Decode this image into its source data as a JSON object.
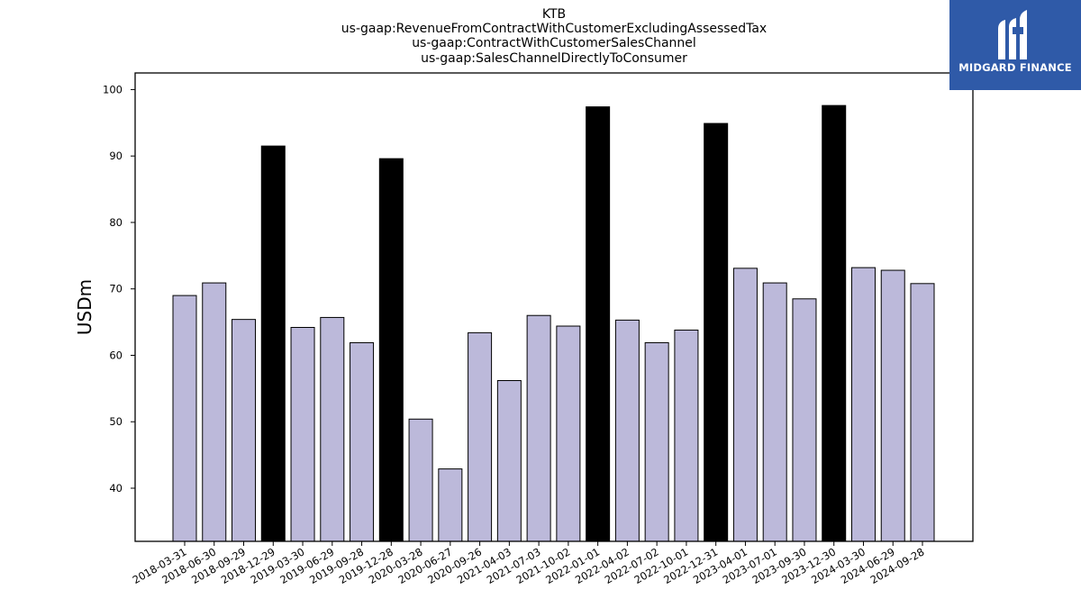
{
  "brand": {
    "name": "MIDGARD FINANCE",
    "logo_icon": "midgard-logo-icon",
    "color": "#2f5aa8"
  },
  "chart_data": {
    "type": "bar",
    "title_lines": [
      "KTB",
      "us-gaap:RevenueFromContractWithCustomerExcludingAssessedTax",
      "us-gaap:ContractWithCustomerSalesChannel",
      "us-gaap:SalesChannelDirectlyToConsumer"
    ],
    "xlabel": "",
    "ylabel": "USDm",
    "ylim": [
      32,
      102.5
    ],
    "yticks": [
      40,
      50,
      60,
      70,
      80,
      90,
      100
    ],
    "grid": false,
    "colors": {
      "quarter": "#bcb9da",
      "fiscal_q4": "#000000",
      "edge": "#000000"
    },
    "categories": [
      "2018-03-31",
      "2018-06-30",
      "2018-09-29",
      "2018-12-29",
      "2019-03-30",
      "2019-06-29",
      "2019-09-28",
      "2019-12-28",
      "2020-03-28",
      "2020-06-27",
      "2020-09-26",
      "2021-04-03",
      "2021-07-03",
      "2021-10-02",
      "2022-01-01",
      "2022-04-02",
      "2022-07-02",
      "2022-10-01",
      "2022-12-31",
      "2023-04-01",
      "2023-07-01",
      "2023-09-30",
      "2023-12-30",
      "2024-03-30",
      "2024-06-29",
      "2024-09-28"
    ],
    "values": [
      69.0,
      70.9,
      65.4,
      91.5,
      64.2,
      65.7,
      61.9,
      89.6,
      50.4,
      42.9,
      63.4,
      56.2,
      66.0,
      64.4,
      97.4,
      65.3,
      61.9,
      63.8,
      94.9,
      73.1,
      70.9,
      68.5,
      97.6,
      73.2,
      72.8,
      70.8
    ],
    "highlight": [
      false,
      false,
      false,
      true,
      false,
      false,
      false,
      true,
      false,
      false,
      false,
      false,
      false,
      false,
      true,
      false,
      false,
      false,
      true,
      false,
      false,
      false,
      true,
      false,
      false,
      false
    ]
  }
}
